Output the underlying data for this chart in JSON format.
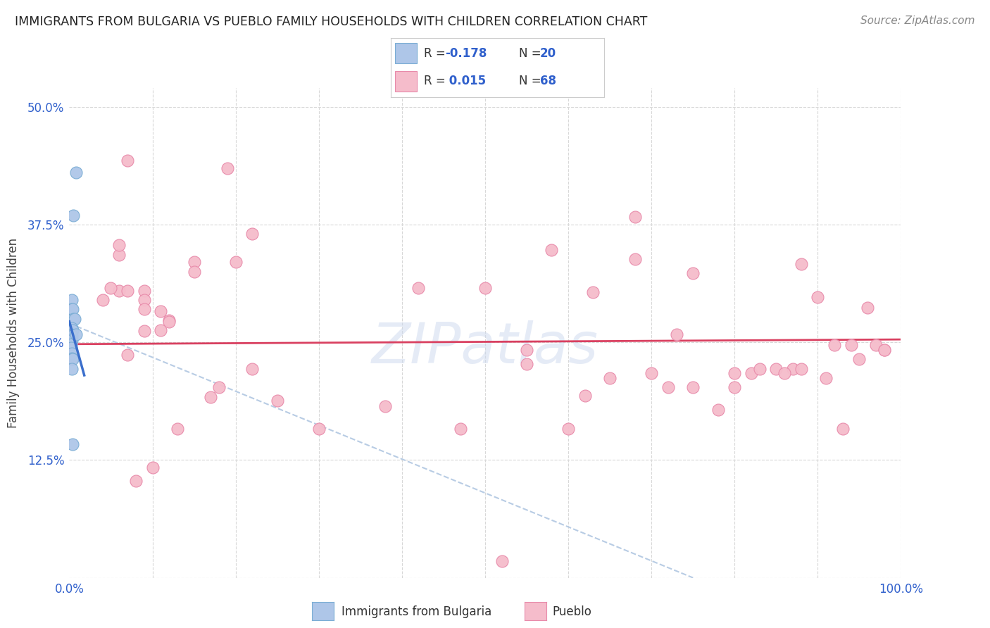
{
  "title": "IMMIGRANTS FROM BULGARIA VS PUEBLO FAMILY HOUSEHOLDS WITH CHILDREN CORRELATION CHART",
  "source": "Source: ZipAtlas.com",
  "ylabel": "Family Households with Children",
  "xlim": [
    0.0,
    1.0
  ],
  "ylim": [
    0.0,
    0.52
  ],
  "yticks": [
    0.0,
    0.125,
    0.25,
    0.375,
    0.5
  ],
  "yticklabels": [
    "",
    "12.5%",
    "25.0%",
    "37.5%",
    "50.0%"
  ],
  "xticks": [
    0.0,
    0.5,
    1.0
  ],
  "xticklabels": [
    "0.0%",
    "",
    "100.0%"
  ],
  "blue_scatter_x": [
    0.008,
    0.005,
    0.003,
    0.003,
    0.004,
    0.005,
    0.006,
    0.003,
    0.004,
    0.002,
    0.003,
    0.003,
    0.002,
    0.002,
    0.003,
    0.003,
    0.004,
    0.003,
    0.004,
    0.008
  ],
  "blue_scatter_y": [
    0.43,
    0.385,
    0.295,
    0.285,
    0.285,
    0.275,
    0.275,
    0.265,
    0.263,
    0.258,
    0.257,
    0.252,
    0.248,
    0.244,
    0.238,
    0.233,
    0.232,
    0.222,
    0.142,
    0.258
  ],
  "pink_scatter_x": [
    0.06,
    0.04,
    0.15,
    0.19,
    0.22,
    0.07,
    0.09,
    0.09,
    0.09,
    0.11,
    0.12,
    0.12,
    0.11,
    0.09,
    0.2,
    0.15,
    0.5,
    0.55,
    0.6,
    0.62,
    0.65,
    0.7,
    0.72,
    0.75,
    0.78,
    0.8,
    0.82,
    0.85,
    0.87,
    0.88,
    0.9,
    0.92,
    0.93,
    0.95,
    0.97,
    0.98,
    0.68,
    0.73,
    0.63,
    0.55,
    0.47,
    0.42,
    0.38,
    0.3,
    0.25,
    0.22,
    0.18,
    0.17,
    0.13,
    0.1,
    0.08,
    0.07,
    0.06,
    0.05,
    0.06,
    0.07,
    0.58,
    0.68,
    0.75,
    0.8,
    0.83,
    0.86,
    0.88,
    0.91,
    0.94,
    0.96,
    0.98,
    0.52
  ],
  "pink_scatter_y": [
    0.305,
    0.295,
    0.335,
    0.435,
    0.365,
    0.305,
    0.305,
    0.295,
    0.285,
    0.283,
    0.273,
    0.272,
    0.263,
    0.262,
    0.335,
    0.325,
    0.308,
    0.242,
    0.158,
    0.193,
    0.212,
    0.217,
    0.202,
    0.202,
    0.178,
    0.202,
    0.217,
    0.222,
    0.222,
    0.222,
    0.298,
    0.247,
    0.158,
    0.232,
    0.247,
    0.242,
    0.338,
    0.258,
    0.303,
    0.227,
    0.158,
    0.308,
    0.182,
    0.158,
    0.188,
    0.222,
    0.202,
    0.192,
    0.158,
    0.117,
    0.103,
    0.237,
    0.343,
    0.308,
    0.353,
    0.443,
    0.348,
    0.383,
    0.323,
    0.217,
    0.222,
    0.217,
    0.333,
    0.212,
    0.247,
    0.287,
    0.242,
    0.018
  ],
  "blue_line_x": [
    0.0,
    0.018
  ],
  "blue_line_y": [
    0.272,
    0.215
  ],
  "pink_line_x": [
    0.0,
    1.0
  ],
  "pink_line_y": [
    0.248,
    0.253
  ],
  "dashed_line_x": [
    0.0,
    0.75
  ],
  "dashed_line_y": [
    0.27,
    0.0
  ],
  "blue_color": "#aec6e8",
  "blue_dot_edge": "#7aadd4",
  "pink_color": "#f5bccb",
  "pink_dot_edge": "#e88aaa",
  "blue_line_color": "#3b6fcc",
  "pink_line_color": "#d94060",
  "dashed_line_color": "#b8cce4",
  "watermark": "ZIPatlas",
  "background_color": "#ffffff",
  "grid_color": "#d8d8d8",
  "title_color": "#222222",
  "source_color": "#888888",
  "tick_color": "#3060cc",
  "ylabel_color": "#444444",
  "legend_color": "#3060cc"
}
